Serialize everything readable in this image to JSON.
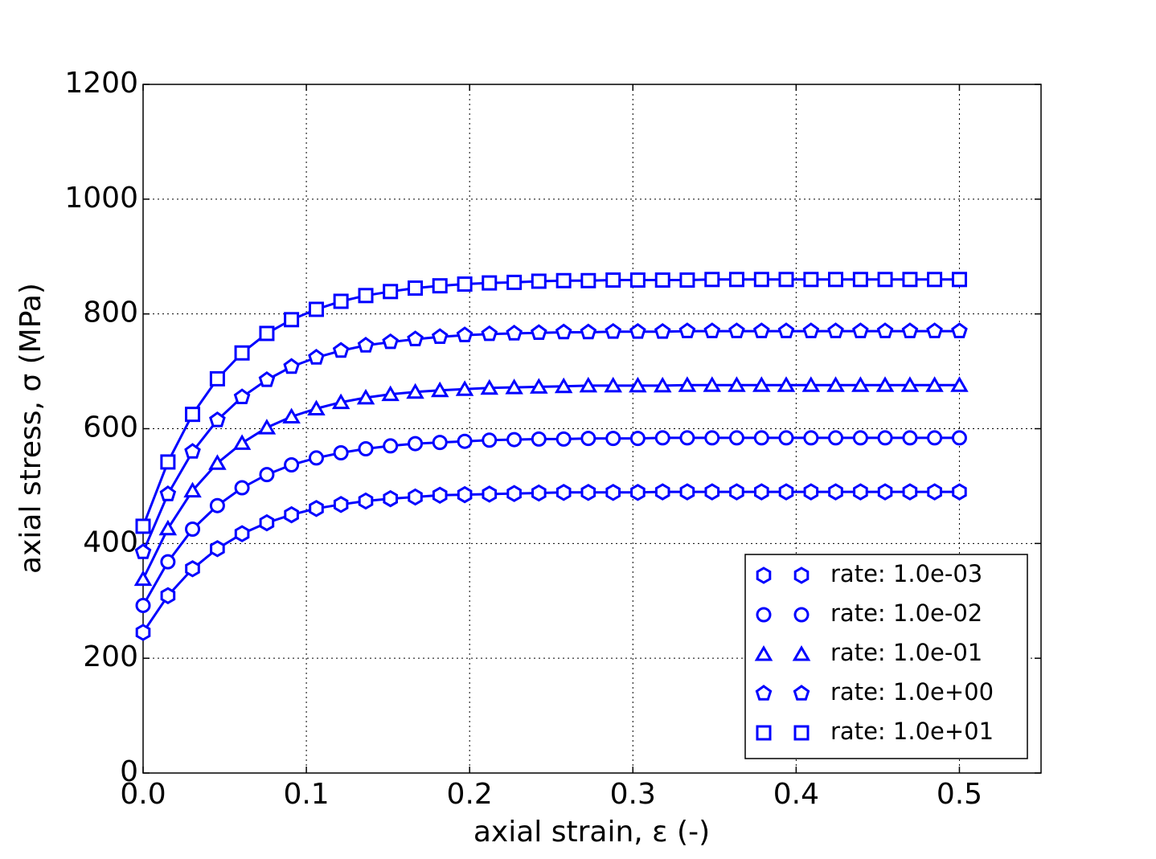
{
  "chart_data": {
    "type": "line",
    "xlabel": "axial strain, ε (-)",
    "ylabel": "axial stress, σ (MPa)",
    "x": [
      0,
      0.0152,
      0.0303,
      0.0455,
      0.0606,
      0.0758,
      0.0909,
      0.1061,
      0.1212,
      0.1364,
      0.1515,
      0.1667,
      0.1818,
      0.197,
      0.2121,
      0.2273,
      0.2424,
      0.2576,
      0.2727,
      0.2879,
      0.303,
      0.3182,
      0.3333,
      0.3485,
      0.3636,
      0.3788,
      0.3939,
      0.4091,
      0.4242,
      0.4394,
      0.4545,
      0.4697,
      0.4848,
      0.5
    ],
    "series": [
      {
        "name": "rate: 1.0e-03",
        "color": "#0000ff",
        "marker": "hexagon",
        "values": [
          245,
          309,
          356,
          391,
          417,
          436,
          450,
          461,
          468,
          474,
          478,
          481,
          484,
          485,
          486,
          487,
          488,
          489,
          489,
          489,
          489,
          490,
          490,
          490,
          490,
          490,
          490,
          490,
          490,
          490,
          490,
          490,
          490,
          490
        ]
      },
      {
        "name": "rate: 1.0e-02",
        "color": "#0000ff",
        "marker": "circle",
        "values": [
          292,
          368,
          425,
          466,
          497,
          520,
          537,
          549,
          558,
          565,
          570,
          574,
          576,
          578,
          580,
          581,
          582,
          582,
          583,
          583,
          583,
          584,
          584,
          584,
          584,
          584,
          584,
          584,
          584,
          584,
          584,
          584,
          584,
          584
        ]
      },
      {
        "name": "rate: 1.0e-01",
        "color": "#0000ff",
        "marker": "triangle",
        "values": [
          338,
          426,
          492,
          540,
          575,
          602,
          621,
          635,
          646,
          654,
          660,
          664,
          667,
          669,
          671,
          672,
          673,
          674,
          675,
          675,
          675,
          675,
          676,
          676,
          676,
          676,
          676,
          676,
          676,
          676,
          676,
          676,
          676,
          676
        ]
      },
      {
        "name": "rate: 1.0e+00",
        "color": "#0000ff",
        "marker": "pentagon",
        "values": [
          385,
          486,
          560,
          615,
          655,
          685,
          708,
          724,
          736,
          745,
          751,
          756,
          760,
          763,
          765,
          766,
          767,
          768,
          768,
          769,
          769,
          769,
          770,
          770,
          770,
          770,
          770,
          770,
          770,
          770,
          770,
          770,
          770,
          770
        ]
      },
      {
        "name": "rate: 1.0e+01",
        "color": "#0000ff",
        "marker": "square",
        "values": [
          430,
          542,
          625,
          687,
          732,
          766,
          790,
          808,
          822,
          832,
          839,
          845,
          849,
          852,
          854,
          855,
          857,
          858,
          858,
          859,
          859,
          859,
          859,
          860,
          860,
          860,
          860,
          860,
          860,
          860,
          860,
          860,
          860,
          860
        ]
      }
    ],
    "xlim": [
      0,
      0.55
    ],
    "ylim": [
      0,
      1200
    ],
    "xticks": [
      {
        "value": 0,
        "label": "0.0"
      },
      0.1,
      0.2,
      0.3,
      0.4,
      0.5
    ],
    "yticks": [
      0,
      200,
      400,
      600,
      800,
      1000,
      1200
    ],
    "grid": true,
    "legend": "lower right"
  }
}
